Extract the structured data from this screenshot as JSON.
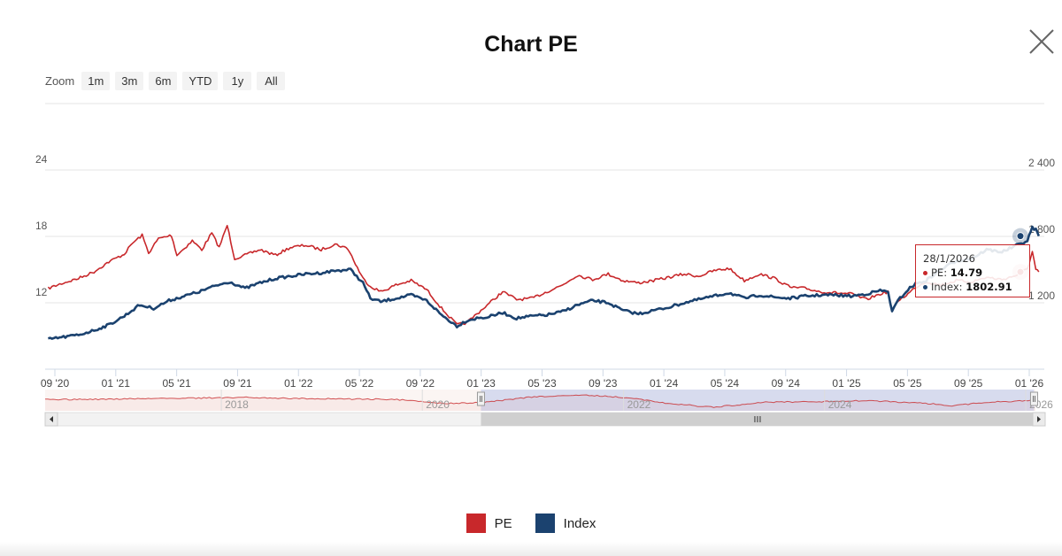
{
  "modal": {
    "title": "Chart PE"
  },
  "zoom": {
    "label": "Zoom",
    "buttons": [
      "1m",
      "3m",
      "6m",
      "YTD",
      "1y",
      "All"
    ]
  },
  "colors": {
    "pe": "#c8282b",
    "index": "#1b426f",
    "navigator_fill": "#c9cfe8"
  },
  "chart_data": {
    "type": "line",
    "x_ticks": [
      "09 '20",
      "01 '21",
      "05 '21",
      "09 '21",
      "01 '22",
      "05 '22",
      "09 '22",
      "01 '23",
      "05 '23",
      "09 '23",
      "01 '24",
      "05 '24",
      "09 '24",
      "01 '25",
      "05 '25",
      "09 '25",
      "01 '26"
    ],
    "y_left": {
      "ticks": [
        "24",
        "18",
        "12"
      ],
      "range": [
        6,
        30
      ]
    },
    "y_right": {
      "ticks": [
        "2 400",
        "1 800",
        "1 200"
      ],
      "range": [
        600,
        3000
      ]
    },
    "grid": true,
    "series": [
      {
        "name": "PE",
        "axis": "left",
        "points": [
          [
            "2020-08-15",
            13.3
          ],
          [
            "2020-09-15",
            13.8
          ],
          [
            "2020-10-15",
            14.2
          ],
          [
            "2020-11-15",
            14.8
          ],
          [
            "2020-12-15",
            15.7
          ],
          [
            "2021-01-15",
            16.4
          ],
          [
            "2021-02-01",
            17.4
          ],
          [
            "2021-02-20",
            18.1
          ],
          [
            "2021-03-05",
            16.5
          ],
          [
            "2021-03-25",
            17.8
          ],
          [
            "2021-04-20",
            18.1
          ],
          [
            "2021-05-01",
            16.3
          ],
          [
            "2021-06-01",
            17.6
          ],
          [
            "2021-06-20",
            16.8
          ],
          [
            "2021-07-10",
            18.3
          ],
          [
            "2021-07-25",
            17.0
          ],
          [
            "2021-08-10",
            19.0
          ],
          [
            "2021-08-25",
            16.0
          ],
          [
            "2021-09-15",
            16.3
          ],
          [
            "2021-10-15",
            16.8
          ],
          [
            "2021-11-15",
            16.3
          ],
          [
            "2021-12-15",
            17.0
          ],
          [
            "2022-01-15",
            17.2
          ],
          [
            "2022-02-15",
            16.8
          ],
          [
            "2022-03-15",
            17.3
          ],
          [
            "2022-04-10",
            16.9
          ],
          [
            "2022-04-25",
            15.5
          ],
          [
            "2022-05-10",
            14.2
          ],
          [
            "2022-05-25",
            13.5
          ],
          [
            "2022-06-15",
            13.0
          ],
          [
            "2022-07-15",
            13.6
          ],
          [
            "2022-08-15",
            14.0
          ],
          [
            "2022-09-15",
            13.2
          ],
          [
            "2022-10-15",
            11.5
          ],
          [
            "2022-11-15",
            10.0
          ],
          [
            "2022-12-05",
            10.2
          ],
          [
            "2022-12-25",
            11.0
          ],
          [
            "2023-01-15",
            11.8
          ],
          [
            "2023-02-15",
            13.0
          ],
          [
            "2023-03-15",
            12.3
          ],
          [
            "2023-04-15",
            12.4
          ],
          [
            "2023-05-15",
            13.0
          ],
          [
            "2023-06-15",
            13.6
          ],
          [
            "2023-07-15",
            14.5
          ],
          [
            "2023-08-15",
            14.1
          ],
          [
            "2023-09-15",
            14.6
          ],
          [
            "2023-10-15",
            14.0
          ],
          [
            "2023-11-15",
            13.8
          ],
          [
            "2023-12-15",
            14.0
          ],
          [
            "2024-01-15",
            14.3
          ],
          [
            "2024-02-15",
            14.6
          ],
          [
            "2024-03-15",
            14.4
          ],
          [
            "2024-04-15",
            14.9
          ],
          [
            "2024-05-15",
            15.1
          ],
          [
            "2024-06-15",
            14.0
          ],
          [
            "2024-07-15",
            14.6
          ],
          [
            "2024-08-15",
            14.2
          ],
          [
            "2024-09-15",
            13.4
          ],
          [
            "2024-10-15",
            13.3
          ],
          [
            "2024-11-15",
            13.0
          ],
          [
            "2024-12-15",
            12.9
          ],
          [
            "2025-01-15",
            12.8
          ],
          [
            "2025-02-15",
            12.3
          ],
          [
            "2025-03-15",
            12.8
          ],
          [
            "2025-03-31",
            13.0
          ],
          [
            "2025-04-08",
            11.2
          ],
          [
            "2025-04-20",
            12.2
          ],
          [
            "2025-05-10",
            12.8
          ],
          [
            "2025-05-25",
            13.4
          ],
          [
            "2025-06-15",
            13.9
          ],
          [
            "2025-07-15",
            13.6
          ],
          [
            "2025-08-15",
            14.0
          ],
          [
            "2025-09-15",
            13.9
          ],
          [
            "2025-10-15",
            14.3
          ],
          [
            "2025-11-15",
            14.1
          ],
          [
            "2025-12-15",
            14.5
          ],
          [
            "2026-01-05",
            15.1
          ],
          [
            "2026-01-15",
            16.6
          ],
          [
            "2026-01-22",
            15.0
          ],
          [
            "2026-01-28",
            14.79
          ]
        ]
      },
      {
        "name": "Index",
        "axis": "right",
        "points": [
          [
            "2020-08-15",
            870
          ],
          [
            "2020-09-15",
            890
          ],
          [
            "2020-10-15",
            910
          ],
          [
            "2020-11-15",
            950
          ],
          [
            "2020-12-15",
            1000
          ],
          [
            "2021-01-15",
            1080
          ],
          [
            "2021-02-15",
            1180
          ],
          [
            "2021-03-15",
            1150
          ],
          [
            "2021-04-15",
            1220
          ],
          [
            "2021-05-15",
            1260
          ],
          [
            "2021-06-15",
            1300
          ],
          [
            "2021-07-15",
            1350
          ],
          [
            "2021-08-15",
            1390
          ],
          [
            "2021-09-15",
            1330
          ],
          [
            "2021-10-15",
            1380
          ],
          [
            "2021-11-15",
            1420
          ],
          [
            "2021-12-15",
            1440
          ],
          [
            "2022-01-15",
            1460
          ],
          [
            "2022-02-15",
            1470
          ],
          [
            "2022-03-15",
            1490
          ],
          [
            "2022-04-15",
            1500
          ],
          [
            "2022-05-10",
            1380
          ],
          [
            "2022-05-25",
            1240
          ],
          [
            "2022-06-15",
            1210
          ],
          [
            "2022-07-15",
            1240
          ],
          [
            "2022-08-15",
            1270
          ],
          [
            "2022-09-15",
            1220
          ],
          [
            "2022-10-15",
            1090
          ],
          [
            "2022-11-15",
            990
          ],
          [
            "2022-12-05",
            1040
          ],
          [
            "2022-12-25",
            1060
          ],
          [
            "2023-01-15",
            1070
          ],
          [
            "2023-02-15",
            1110
          ],
          [
            "2023-03-15",
            1060
          ],
          [
            "2023-04-15",
            1080
          ],
          [
            "2023-05-15",
            1090
          ],
          [
            "2023-06-15",
            1120
          ],
          [
            "2023-07-15",
            1180
          ],
          [
            "2023-08-15",
            1220
          ],
          [
            "2023-09-15",
            1200
          ],
          [
            "2023-10-15",
            1130
          ],
          [
            "2023-11-15",
            1100
          ],
          [
            "2023-12-15",
            1130
          ],
          [
            "2024-01-15",
            1160
          ],
          [
            "2024-02-15",
            1200
          ],
          [
            "2024-03-15",
            1230
          ],
          [
            "2024-04-15",
            1260
          ],
          [
            "2024-05-15",
            1290
          ],
          [
            "2024-06-15",
            1240
          ],
          [
            "2024-07-15",
            1270
          ],
          [
            "2024-08-15",
            1250
          ],
          [
            "2024-09-15",
            1240
          ],
          [
            "2024-10-15",
            1260
          ],
          [
            "2024-11-15",
            1270
          ],
          [
            "2024-12-15",
            1270
          ],
          [
            "2025-01-15",
            1260
          ],
          [
            "2025-02-15",
            1280
          ],
          [
            "2025-03-15",
            1310
          ],
          [
            "2025-03-31",
            1300
          ],
          [
            "2025-04-08",
            1120
          ],
          [
            "2025-04-20",
            1220
          ],
          [
            "2025-05-10",
            1320
          ],
          [
            "2025-05-25",
            1370
          ],
          [
            "2025-06-15",
            1400
          ],
          [
            "2025-07-15",
            1500
          ],
          [
            "2025-08-15",
            1580
          ],
          [
            "2025-09-15",
            1600
          ],
          [
            "2025-10-15",
            1680
          ],
          [
            "2025-11-15",
            1660
          ],
          [
            "2025-12-15",
            1720
          ],
          [
            "2026-01-05",
            1760
          ],
          [
            "2026-01-15",
            1880
          ],
          [
            "2026-01-22",
            1860
          ],
          [
            "2026-01-28",
            1802.91
          ]
        ]
      }
    ],
    "navigator": {
      "labels": [
        "2018",
        "2020",
        "2022",
        "2024",
        "2026"
      ],
      "range": [
        "2016-04-01",
        "2026-02-05"
      ],
      "selected": [
        "2020-08-01",
        "2026-01-31"
      ],
      "series": [
        [
          "2016-04-01",
          15.5
        ],
        [
          "2016-10-01",
          15.8
        ],
        [
          "2017-04-01",
          16.3
        ],
        [
          "2017-10-01",
          16.6
        ],
        [
          "2018-04-01",
          17.2
        ],
        [
          "2018-10-01",
          16.4
        ],
        [
          "2019-04-01",
          16.0
        ],
        [
          "2019-10-01",
          15.6
        ],
        [
          "2020-03-15",
          12.8
        ],
        [
          "2020-08-01",
          13.3
        ],
        [
          "2021-02-01",
          17.4
        ],
        [
          "2021-08-10",
          19.0
        ],
        [
          "2022-01-01",
          17.2
        ],
        [
          "2022-06-01",
          13.2
        ],
        [
          "2022-11-15",
          10.0
        ],
        [
          "2023-06-01",
          13.6
        ],
        [
          "2024-01-01",
          14.2
        ],
        [
          "2024-06-01",
          14.8
        ],
        [
          "2025-01-01",
          12.8
        ],
        [
          "2025-04-08",
          11.2
        ],
        [
          "2025-09-01",
          13.9
        ],
        [
          "2026-01-28",
          14.79
        ]
      ]
    },
    "tooltip": {
      "date": "28/1/2026",
      "pe_label": "PE: ",
      "pe_value": "14.79",
      "index_label": "Index: ",
      "index_value": "1802.91"
    },
    "legend": {
      "position": "bottom-center",
      "items": [
        "PE",
        "Index"
      ]
    }
  }
}
